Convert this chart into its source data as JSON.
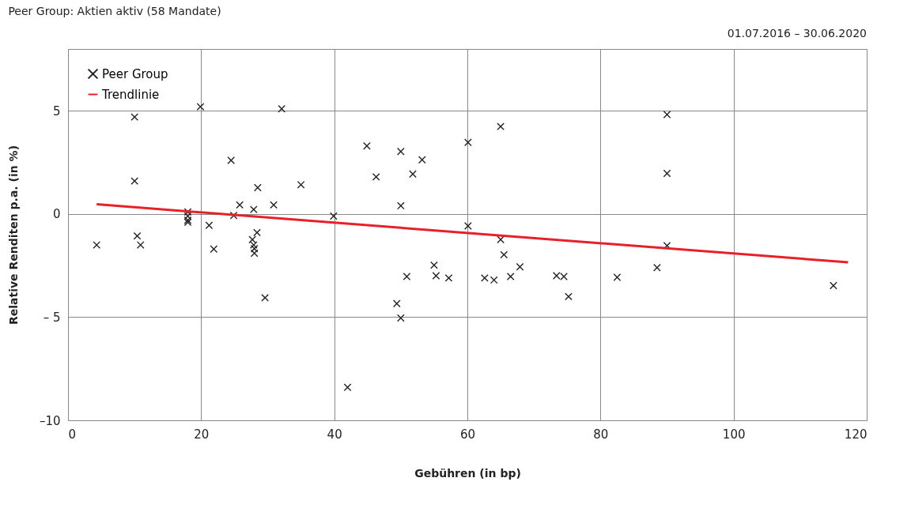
{
  "chart_data": {
    "type": "scatter",
    "title": "Peer Group: Aktien aktiv (58 Mandate)",
    "subtitle": "01.07.2016 – 30.06.2020",
    "xlabel": "Gebühren (in bp)",
    "ylabel": "Relative Renditen p.a. (in %)",
    "xlim": [
      0,
      120
    ],
    "xticks": [
      0,
      20,
      40,
      60,
      80,
      100,
      120
    ],
    "ylim": [
      -10,
      8
    ],
    "yticks": [
      {
        "value": -10,
        "label": "–10"
      },
      {
        "value": -5,
        "label": "– 5"
      },
      0,
      5
    ],
    "grid": true,
    "legend": "top left",
    "series": [
      {
        "name": "Peer Group",
        "marker": "cross",
        "color": "#222222",
        "x": [
          4.3,
          10,
          10,
          10.4,
          10.9,
          18,
          18,
          18,
          18,
          19.9,
          21.2,
          21.9,
          24.5,
          24.9,
          25.8,
          27.7,
          27.9,
          28,
          28,
          28.4,
          27.9,
          28.5,
          29.6,
          30.9,
          32.1,
          35,
          39.9,
          42,
          44.9,
          46.3,
          49.4,
          50,
          50,
          50,
          50.9,
          51.8,
          53.2,
          55,
          55.3,
          57.2,
          60.1,
          60.1,
          62.6,
          64,
          65,
          65,
          65.5,
          66.5,
          67.9,
          73.4,
          74.5,
          75.2,
          82.5,
          88.5,
          90,
          90,
          90,
          115
        ],
        "values": [
          -1.5,
          4.7,
          1.6,
          -1.06,
          -1.5,
          0.1,
          -0.1,
          -0.3,
          -0.4,
          5.2,
          -0.55,
          -1.7,
          2.6,
          -0.07,
          0.44,
          -1.24,
          -1.5,
          -1.68,
          -1.9,
          -0.9,
          0.22,
          1.28,
          -4.06,
          0.44,
          5.1,
          1.42,
          -0.1,
          -8.4,
          3.3,
          1.8,
          -4.34,
          -5.04,
          3.03,
          0.4,
          -3.03,
          1.94,
          2.63,
          -2.48,
          -2.99,
          -3.1,
          3.47,
          -0.58,
          -3.1,
          -3.2,
          4.24,
          -1.24,
          -1.97,
          -3.03,
          -2.56,
          -2.99,
          -3.03,
          -4.0,
          -3.07,
          -2.6,
          4.82,
          1.97,
          -1.53,
          -3.47
        ]
      },
      {
        "name": "Trendlinie",
        "type": "line",
        "marker": "none",
        "color": "#e8202a",
        "line_style": "solid",
        "x": [
          4.3,
          117.2
        ],
        "values": [
          0.47,
          -2.34
        ]
      }
    ]
  }
}
